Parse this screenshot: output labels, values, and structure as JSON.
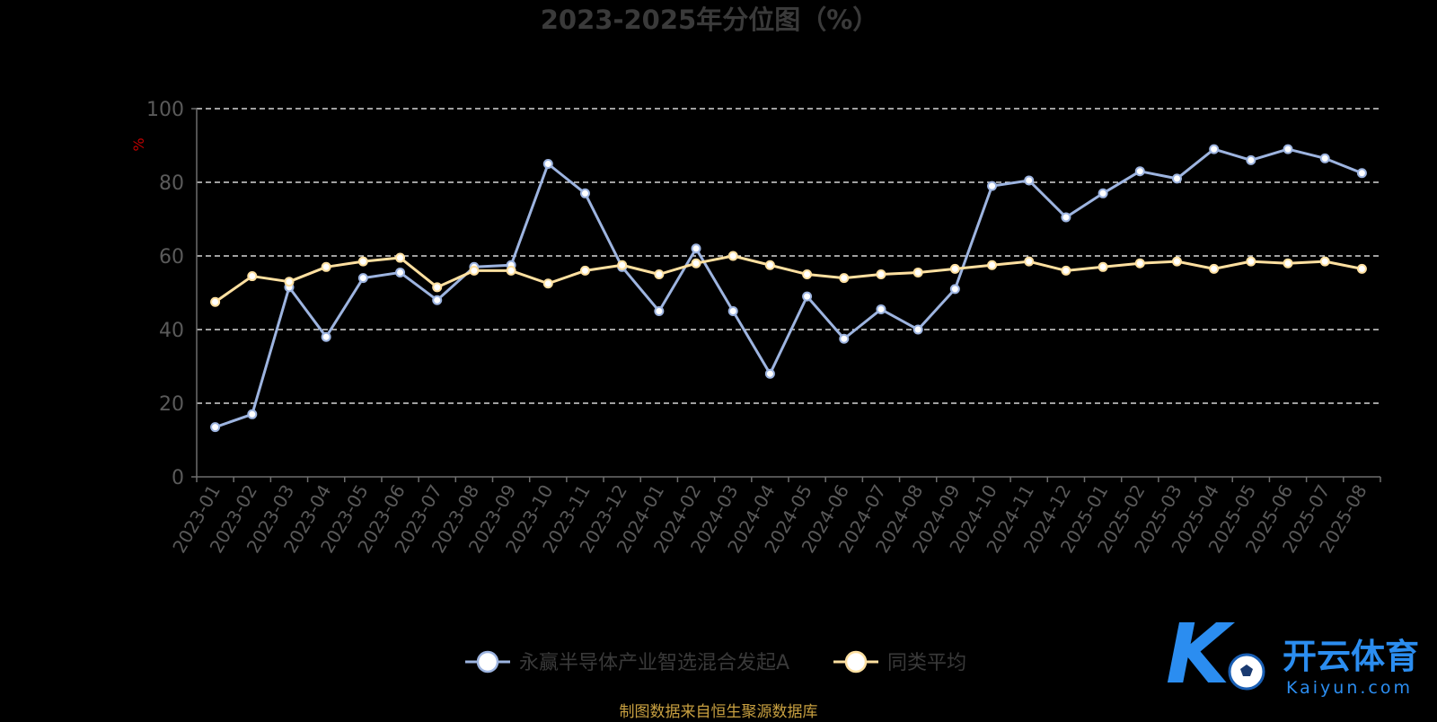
{
  "page": {
    "source_note": "制图数据来自恒生聚源数据库",
    "watermark": {
      "brand_cn": "开云体育",
      "brand_en": "Kaiyun.com",
      "logo_letter": "K"
    }
  },
  "colors": {
    "background": "#000000",
    "axis": "#6e6e6e",
    "tick_label": "#5a5a5a",
    "title": "#3a3a3a",
    "grid": "#ffffff",
    "ylabel": "#c00000",
    "source_note": "#c8a040",
    "series_a": "#9db4e0",
    "series_b": "#ffe0a0",
    "brand": "#2b8df0"
  },
  "chart_data": {
    "type": "line",
    "title": "2023-2025年分位图（%）",
    "xlabel": "",
    "ylabel": "%",
    "ylim": [
      0,
      100
    ],
    "yticks": [
      0,
      20,
      40,
      60,
      80,
      100
    ],
    "grid": true,
    "legend_position": "bottom",
    "categories": [
      "2023-01",
      "2023-02",
      "2023-03",
      "2023-04",
      "2023-05",
      "2023-06",
      "2023-07",
      "2023-08",
      "2023-09",
      "2023-10",
      "2023-11",
      "2023-12",
      "2024-01",
      "2024-02",
      "2024-03",
      "2024-04",
      "2024-05",
      "2024-06",
      "2024-07",
      "2024-08",
      "2024-09",
      "2024-10",
      "2024-11",
      "2024-12",
      "2025-01",
      "2025-02",
      "2025-03",
      "2025-04",
      "2025-05",
      "2025-06",
      "2025-07",
      "2025-08"
    ],
    "series": [
      {
        "name": "永赢半导体产业智选混合发起A",
        "color": "#9db4e0",
        "values": [
          13.5,
          17,
          51.5,
          38,
          54,
          55.5,
          48,
          57,
          57.5,
          85,
          77,
          57,
          45,
          62,
          45,
          28,
          49,
          37.5,
          45.5,
          40,
          51,
          79,
          80.5,
          70.5,
          77,
          83,
          81,
          89,
          86,
          89,
          86.5,
          82.5
        ]
      },
      {
        "name": "同类平均",
        "color": "#ffe0a0",
        "values": [
          47.5,
          54.5,
          53,
          57,
          58.5,
          59.5,
          51.5,
          56,
          56,
          52.5,
          56,
          57.5,
          55,
          58,
          60,
          57.5,
          55,
          54,
          55,
          55.5,
          56.5,
          57.5,
          58.5,
          56,
          57,
          58,
          58.5,
          56.5,
          58.5,
          58,
          58.5,
          56.5
        ]
      }
    ]
  }
}
